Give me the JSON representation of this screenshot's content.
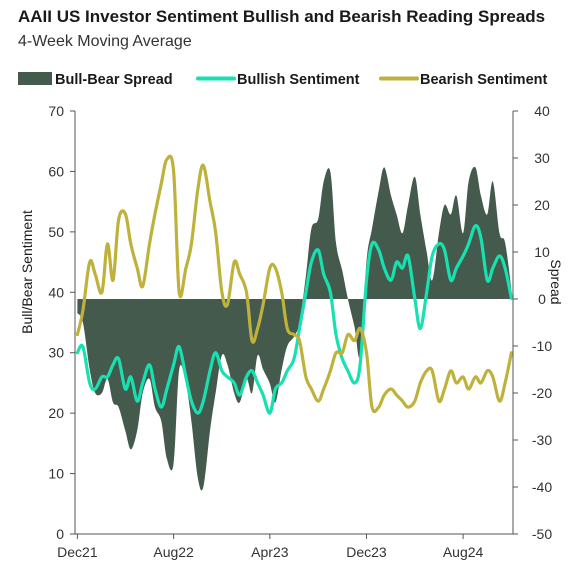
{
  "chart_data": {
    "type": "area+line",
    "title": "AAII US Investor Sentiment Bullish and Bearish Reading Spreads",
    "subtitle": "4-Week Moving Average",
    "ylabel_left": "Bull/Bear Sentiment",
    "ylabel_right": "Spread",
    "ylim_left": [
      0,
      70
    ],
    "ylim_right": [
      -50,
      40
    ],
    "yticks_left": [
      "0",
      "10",
      "20",
      "30",
      "40",
      "50",
      "60",
      "70"
    ],
    "yticks_right": [
      "-50",
      "-40",
      "-30",
      "-20",
      "-10",
      "0",
      "10",
      "20",
      "30",
      "40"
    ],
    "x_tick_labels": [
      "Dec21",
      "Aug22",
      "Apr23",
      "Dec23",
      "Aug24"
    ],
    "x_tick_dates": [
      "2021-12",
      "2022-08",
      "2023-04",
      "2023-12",
      "2024-08"
    ],
    "legend_position": "top",
    "grid": false,
    "series": [
      {
        "name": "Bull-Bear Spread",
        "kind": "area",
        "axis": "right",
        "color": "#435a4c",
        "x": [
          "2021-12-01",
          "2021-12-15",
          "2022-01-01",
          "2022-01-15",
          "2022-02-01",
          "2022-02-15",
          "2022-03-01",
          "2022-03-15",
          "2022-04-01",
          "2022-04-15",
          "2022-05-01",
          "2022-05-15",
          "2022-06-01",
          "2022-06-15",
          "2022-07-01",
          "2022-07-15",
          "2022-08-01",
          "2022-08-15",
          "2022-09-01",
          "2022-09-15",
          "2022-10-01",
          "2022-10-15",
          "2022-11-01",
          "2022-11-15",
          "2022-12-01",
          "2022-12-15",
          "2023-01-01",
          "2023-01-15",
          "2023-02-01",
          "2023-02-15",
          "2023-03-01",
          "2023-03-15",
          "2023-04-01",
          "2023-04-15",
          "2023-05-01",
          "2023-05-15",
          "2023-06-01",
          "2023-06-15",
          "2023-07-01",
          "2023-07-15",
          "2023-08-01",
          "2023-08-15",
          "2023-09-01",
          "2023-09-15",
          "2023-10-01",
          "2023-10-15",
          "2023-11-01",
          "2023-11-15",
          "2023-12-01",
          "2023-12-15",
          "2024-01-01",
          "2024-01-15",
          "2024-02-01",
          "2024-02-15",
          "2024-03-01",
          "2024-03-15",
          "2024-04-01",
          "2024-04-15",
          "2024-05-01",
          "2024-05-15",
          "2024-06-01",
          "2024-06-15",
          "2024-07-01",
          "2024-07-15",
          "2024-08-01",
          "2024-08-15",
          "2024-09-01",
          "2024-09-15",
          "2024-10-01",
          "2024-10-15",
          "2024-11-01",
          "2024-11-15",
          "2024-12-01"
        ],
        "values": [
          -3,
          -5,
          -15,
          -20,
          -20,
          -17,
          -22,
          -23,
          -28,
          -32,
          -28,
          -20,
          -17,
          -23,
          -26,
          -34,
          -35,
          -15,
          -18,
          -26,
          -38,
          -40,
          -28,
          -20,
          -12,
          -14,
          -20,
          -22,
          -17,
          -20,
          -12,
          -15,
          -18,
          -22,
          -15,
          -10,
          -8,
          -5,
          5,
          15,
          17,
          25,
          27,
          12,
          6,
          0,
          -6,
          -12,
          8,
          15,
          23,
          28,
          22,
          18,
          14,
          20,
          26,
          18,
          10,
          4,
          14,
          20,
          18,
          22,
          14,
          25,
          28,
          22,
          18,
          25,
          14,
          12,
          2
        ]
      },
      {
        "name": "Bullish Sentiment",
        "kind": "line",
        "axis": "left",
        "color": "#18e0b0",
        "x": [
          "2021-12-01",
          "2021-12-15",
          "2022-01-01",
          "2022-01-15",
          "2022-02-01",
          "2022-02-15",
          "2022-03-01",
          "2022-03-15",
          "2022-04-01",
          "2022-04-15",
          "2022-05-01",
          "2022-05-15",
          "2022-06-01",
          "2022-06-15",
          "2022-07-01",
          "2022-07-15",
          "2022-08-01",
          "2022-08-15",
          "2022-09-01",
          "2022-09-15",
          "2022-10-01",
          "2022-10-15",
          "2022-11-01",
          "2022-11-15",
          "2022-12-01",
          "2022-12-15",
          "2023-01-01",
          "2023-01-15",
          "2023-02-01",
          "2023-02-15",
          "2023-03-01",
          "2023-03-15",
          "2023-04-01",
          "2023-04-15",
          "2023-05-01",
          "2023-05-15",
          "2023-06-01",
          "2023-06-15",
          "2023-07-01",
          "2023-07-15",
          "2023-08-01",
          "2023-08-15",
          "2023-09-01",
          "2023-09-15",
          "2023-10-01",
          "2023-10-15",
          "2023-11-01",
          "2023-11-15",
          "2023-12-01",
          "2023-12-15",
          "2024-01-01",
          "2024-01-15",
          "2024-02-01",
          "2024-02-15",
          "2024-03-01",
          "2024-03-15",
          "2024-04-01",
          "2024-04-15",
          "2024-05-01",
          "2024-05-15",
          "2024-06-01",
          "2024-06-15",
          "2024-07-01",
          "2024-07-15",
          "2024-08-01",
          "2024-08-15",
          "2024-09-01",
          "2024-09-15",
          "2024-10-01",
          "2024-10-15",
          "2024-11-01",
          "2024-11-15",
          "2024-12-01"
        ],
        "values": [
          30,
          31,
          25,
          24,
          26,
          26,
          28,
          29,
          24,
          26,
          22,
          25,
          28,
          24,
          21,
          24,
          28,
          31,
          26,
          22,
          20,
          22,
          27,
          30,
          27,
          26,
          25,
          23,
          26,
          27,
          25,
          23,
          20,
          24,
          25,
          27,
          29,
          34,
          40,
          45,
          47,
          43,
          40,
          33,
          29,
          27,
          25,
          28,
          42,
          48,
          47,
          44,
          42,
          45,
          44,
          46,
          39,
          34,
          40,
          46,
          48,
          47,
          42,
          44,
          46,
          48,
          51,
          49,
          42,
          44,
          46,
          44,
          39
        ]
      },
      {
        "name": "Bearish Sentiment",
        "kind": "line",
        "axis": "left",
        "color": "#bfb23c",
        "x": [
          "2021-12-01",
          "2021-12-15",
          "2022-01-01",
          "2022-01-15",
          "2022-02-01",
          "2022-02-15",
          "2022-03-01",
          "2022-03-15",
          "2022-04-01",
          "2022-04-15",
          "2022-05-01",
          "2022-05-15",
          "2022-06-01",
          "2022-06-15",
          "2022-07-01",
          "2022-07-15",
          "2022-08-01",
          "2022-08-15",
          "2022-09-01",
          "2022-09-15",
          "2022-10-01",
          "2022-10-15",
          "2022-11-01",
          "2022-11-15",
          "2022-12-01",
          "2022-12-15",
          "2023-01-01",
          "2023-01-15",
          "2023-02-01",
          "2023-02-15",
          "2023-03-01",
          "2023-03-15",
          "2023-04-01",
          "2023-04-15",
          "2023-05-01",
          "2023-05-15",
          "2023-06-01",
          "2023-06-15",
          "2023-07-01",
          "2023-07-15",
          "2023-08-01",
          "2023-08-15",
          "2023-09-01",
          "2023-09-15",
          "2023-10-01",
          "2023-10-15",
          "2023-11-01",
          "2023-11-15",
          "2023-12-01",
          "2023-12-15",
          "2024-01-01",
          "2024-01-15",
          "2024-02-01",
          "2024-02-15",
          "2024-03-01",
          "2024-03-15",
          "2024-04-01",
          "2024-04-15",
          "2024-05-01",
          "2024-05-15",
          "2024-06-01",
          "2024-06-15",
          "2024-07-01",
          "2024-07-15",
          "2024-08-01",
          "2024-08-15",
          "2024-09-01",
          "2024-09-15",
          "2024-10-01",
          "2024-10-15",
          "2024-11-01",
          "2024-11-15",
          "2024-12-01"
        ],
        "values": [
          33,
          37,
          45,
          43,
          40,
          48,
          42,
          52,
          53,
          48,
          44,
          41,
          48,
          53,
          58,
          62,
          60,
          40,
          44,
          48,
          57,
          61,
          55,
          50,
          40,
          38,
          45,
          43,
          40,
          32,
          34,
          38,
          44,
          44,
          40,
          34,
          33,
          32,
          26,
          24,
          22,
          24,
          27,
          30,
          30,
          33,
          32,
          34,
          30,
          21,
          21,
          23,
          24,
          23,
          22,
          21,
          22,
          25,
          27,
          27,
          22,
          24,
          27,
          25,
          26,
          24,
          26,
          25,
          27,
          26,
          22,
          25,
          30
        ]
      }
    ]
  }
}
